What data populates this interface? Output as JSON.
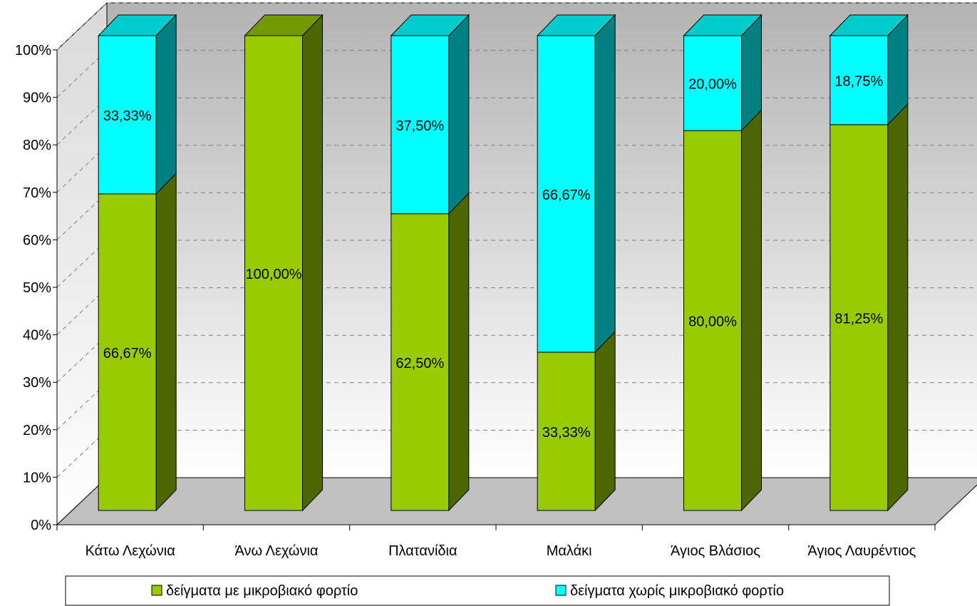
{
  "chart_data": {
    "type": "bar",
    "stacked": true,
    "three_d": true,
    "categories": [
      "Κάτω Λεχώνια",
      "Άνω Λεχώνια",
      "Πλατανίδια",
      "Μαλάκι",
      "Άγιος Βλάσιος",
      "Άγιος Λαυρέντιος"
    ],
    "series": [
      {
        "name": "δείγματα με μικροβιακό φορτίο",
        "values": [
          66.67,
          100.0,
          62.5,
          33.33,
          80.0,
          81.25
        ],
        "labels": [
          "66,67%",
          "100,00%",
          "62,50%",
          "33,33%",
          "80,00%",
          "81,25%"
        ],
        "color": "#99cc00",
        "side_color": "#4d6600"
      },
      {
        "name": "δείγματα χωρίς μικροβιακό φορτίο",
        "values": [
          33.33,
          0.0,
          37.5,
          66.67,
          20.0,
          18.75
        ],
        "labels": [
          "33,33%",
          "",
          "37,50%",
          "66,67%",
          "20,00%",
          "18,75%"
        ],
        "color": "#00ffff",
        "side_color": "#008080"
      }
    ],
    "y_ticks": [
      "0%",
      "10%",
      "20%",
      "30%",
      "40%",
      "50%",
      "60%",
      "70%",
      "80%",
      "90%",
      "100%"
    ],
    "ylim": [
      0,
      100
    ],
    "grid": true,
    "legend_position": "bottom",
    "title": "",
    "xlabel": "",
    "ylabel": ""
  }
}
